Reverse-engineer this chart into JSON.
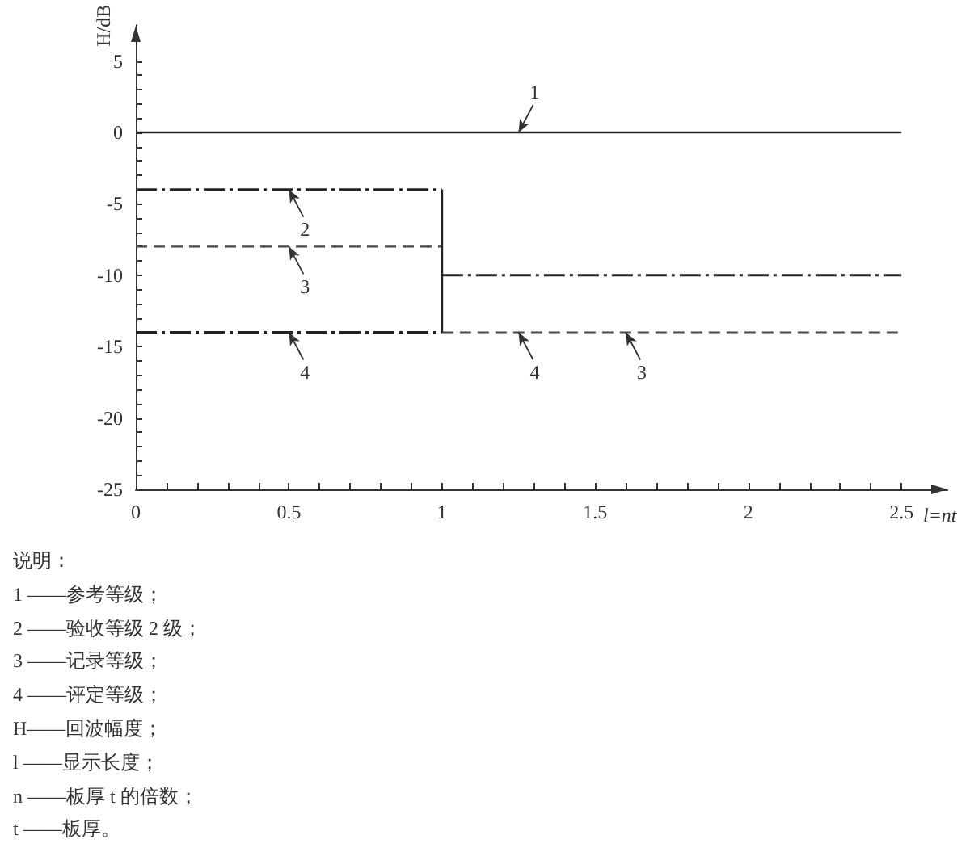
{
  "chart_data": {
    "type": "line",
    "xlabel": "l=nt",
    "ylabel": "H/dB",
    "xlim": [
      0,
      2.65
    ],
    "ylim": [
      -25,
      7.5
    ],
    "xticks": [
      0,
      {
        "value": 0.1,
        "label": null
      },
      {
        "value": 0.2,
        "label": null
      },
      {
        "value": 0.3,
        "label": null
      },
      {
        "value": 0.4,
        "label": null
      },
      0.5,
      {
        "value": 0.6,
        "label": null
      },
      {
        "value": 0.7,
        "label": null
      },
      {
        "value": 0.8,
        "label": null
      },
      {
        "value": 0.9,
        "label": null
      },
      1,
      {
        "value": 1.1,
        "label": null
      },
      {
        "value": 1.2,
        "label": null
      },
      {
        "value": 1.3,
        "label": null
      },
      {
        "value": 1.4,
        "label": null
      },
      1.5,
      {
        "value": 1.6,
        "label": null
      },
      {
        "value": 1.7,
        "label": null
      },
      {
        "value": 1.8,
        "label": null
      },
      {
        "value": 1.9,
        "label": null
      },
      2,
      {
        "value": 2.1,
        "label": null
      },
      {
        "value": 2.2,
        "label": null
      },
      {
        "value": 2.3,
        "label": null
      },
      {
        "value": 2.4,
        "label": null
      },
      2.5
    ],
    "yticks": [
      -25,
      {
        "value": -24,
        "label": null
      },
      {
        "value": -23,
        "label": null
      },
      {
        "value": -22,
        "label": null
      },
      {
        "value": -21,
        "label": null
      },
      -20,
      {
        "value": -19,
        "label": null
      },
      {
        "value": -18,
        "label": null
      },
      {
        "value": -17,
        "label": null
      },
      {
        "value": -16,
        "label": null
      },
      -15,
      {
        "value": -14,
        "label": null
      },
      {
        "value": -13,
        "label": null
      },
      {
        "value": -12,
        "label": null
      },
      {
        "value": -11,
        "label": null
      },
      -10,
      {
        "value": -9,
        "label": null
      },
      {
        "value": -8,
        "label": null
      },
      {
        "value": -7,
        "label": null
      },
      {
        "value": -6,
        "label": null
      },
      -5,
      {
        "value": -4,
        "label": null
      },
      {
        "value": -3,
        "label": null
      },
      {
        "value": -2,
        "label": null
      },
      {
        "value": -1,
        "label": null
      },
      0,
      {
        "value": 1,
        "label": null
      },
      {
        "value": 2,
        "label": null
      },
      {
        "value": 3,
        "label": null
      },
      {
        "value": 4,
        "label": null
      },
      5
    ],
    "grid": false,
    "marker": "none",
    "series": [
      {
        "x": [
          0,
          2.5
        ],
        "values": [
          0,
          0
        ],
        "color": "#222222",
        "line_style": "solid"
      },
      {
        "x": [
          0,
          1
        ],
        "values": [
          -4,
          -4
        ],
        "color": "#222222",
        "line_style": "dashdot"
      },
      {
        "x": [
          1,
          2.5
        ],
        "values": [
          -10,
          -10
        ],
        "color": "#222222",
        "line_style": "dashdot"
      },
      {
        "x": [
          0,
          1
        ],
        "values": [
          -8,
          -8
        ],
        "color": "#474747",
        "line_style": "dashed"
      },
      {
        "x": [
          0,
          1
        ],
        "values": [
          -14,
          -14
        ],
        "color": "#222222",
        "line_style": "dashdot"
      },
      {
        "x": [
          1,
          2.5
        ],
        "values": [
          -14,
          -14
        ],
        "color": "#474747",
        "line_style": "dashed"
      },
      {
        "x": [
          1,
          1
        ],
        "values": [
          -4,
          -14
        ],
        "color": "#222222",
        "line_style": "solid"
      }
    ],
    "annotations": [
      {
        "text": "1",
        "x": 1.25,
        "y": 0
      },
      {
        "text": "2",
        "x": 0.5,
        "y": -4
      },
      {
        "text": "3",
        "x": 0.5,
        "y": -8
      },
      {
        "text": "4",
        "x": 0.5,
        "y": -14
      },
      {
        "text": "4",
        "x": 1.25,
        "y": -14
      },
      {
        "text": "3",
        "x": 1.6,
        "y": -14
      },
      "说明：",
      "1 ——参考等级；",
      "2 ——验收等级 2 级；",
      "3 ——记录等级；",
      "4 ——评定等级；",
      "H——回波幅度；",
      "l ——显示长度；",
      "n ——板厚 t 的倍数；",
      "t ——板厚。"
    ]
  }
}
